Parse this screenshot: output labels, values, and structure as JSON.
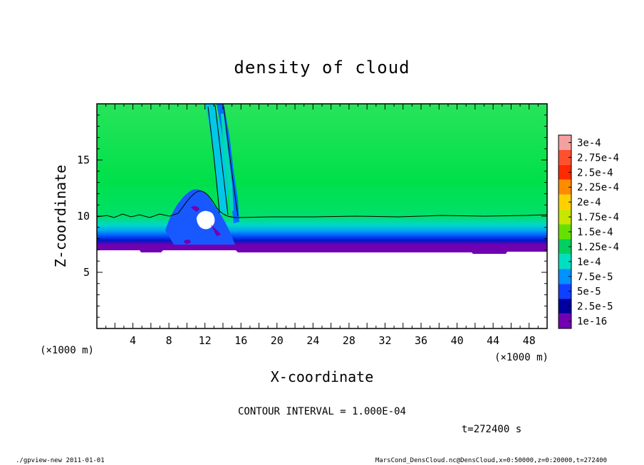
{
  "chart_data": {
    "type": "heatmap",
    "title": "density of cloud",
    "xlabel": "X-coordinate",
    "ylabel": "Z-coordinate",
    "x_unit": "(×1000 m)",
    "z_unit": "(×1000 m)",
    "x_range": [
      0,
      50
    ],
    "z_range": [
      0,
      20
    ],
    "x_ticks": [
      "4",
      "8",
      "12",
      "16",
      "20",
      "24",
      "28",
      "32",
      "36",
      "40",
      "44",
      "48"
    ],
    "z_ticks": [
      "5",
      "10",
      "15"
    ],
    "colorbar": {
      "labels": [
        "3e-4",
        "2.75e-4",
        "2.5e-4",
        "2.25e-4",
        "2e-4",
        "1.75e-4",
        "1.5e-4",
        "1.25e-4",
        "1e-4",
        "7.5e-5",
        "5e-5",
        "2.5e-5",
        "1e-16"
      ],
      "colors": [
        "#f5a0a0",
        "#ff5030",
        "#ff2a00",
        "#ff8c00",
        "#ffd000",
        "#c8e600",
        "#66e000",
        "#00d060",
        "#00e0c0",
        "#0090ff",
        "#1040ff",
        "#0000a0",
        "#7000b0"
      ]
    },
    "field_summary": {
      "cloud_base_z": 7.3,
      "contour_1e-4_z": 9.8,
      "upper_layer_value": "1.25e-4",
      "disturbance_x": [
        8,
        16
      ]
    },
    "contour_interval_text": "CONTOUR INTERVAL = 1.000E-04",
    "time_text": "t=272400 s",
    "footer_left": "./gpview-new   2011-01-01",
    "footer_right": "MarsCond_DensCloud.nc@DensCloud,x=0:50000,z=0:20000,t=272400"
  }
}
